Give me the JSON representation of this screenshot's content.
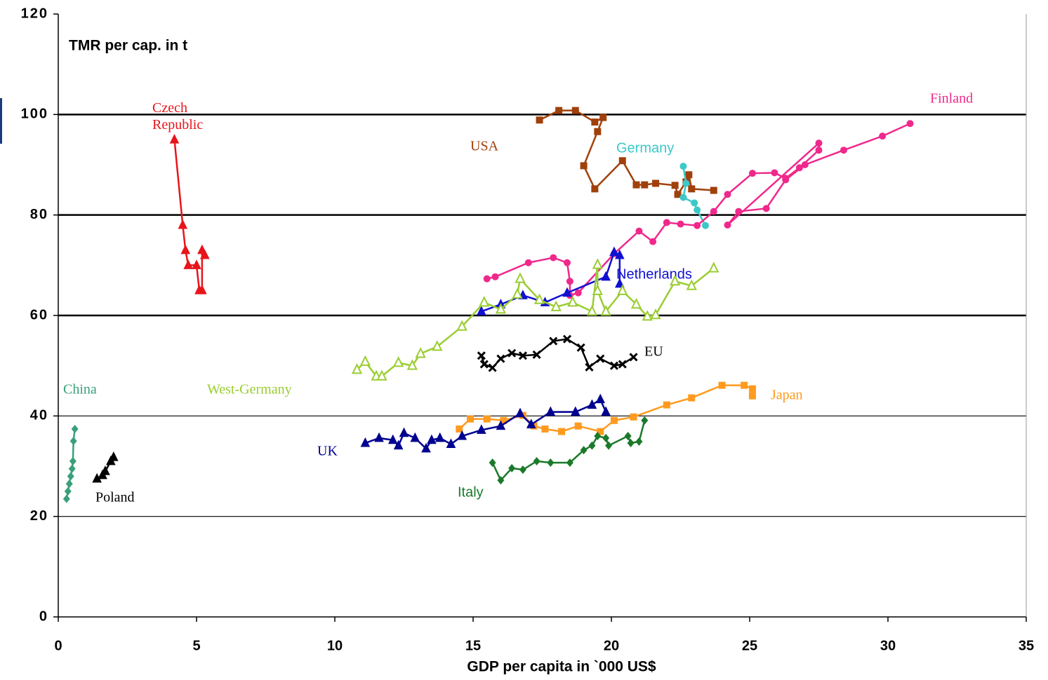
{
  "chart_data": {
    "type": "line",
    "ylabel": "TMR per cap.  in t",
    "xlabel": "GDP per capita in `000 US$",
    "xlim": [
      0,
      35
    ],
    "xticks": [
      0,
      5,
      10,
      15,
      20,
      25,
      30,
      35
    ],
    "ylim": [
      0,
      120
    ],
    "yticks": [
      0,
      20,
      40,
      60,
      80,
      100,
      120
    ],
    "grid": true,
    "series": [
      {
        "name": "Czech Republic",
        "color": "#e8141b",
        "marker": "triangle",
        "x": [
          4.2,
          4.5,
          4.6,
          4.7,
          5.0,
          5.1,
          5.2,
          5.2,
          5.3
        ],
        "values": [
          95,
          78,
          73,
          70,
          70,
          65,
          65,
          73,
          72
        ]
      },
      {
        "name": "China",
        "color": "#3aa07a",
        "marker": "diamond",
        "x": [
          0.3,
          0.35,
          0.4,
          0.45,
          0.5,
          0.53,
          0.55,
          0.6
        ],
        "values": [
          23.5,
          25,
          26.5,
          28,
          29.5,
          31,
          35,
          37.4
        ]
      },
      {
        "name": "Poland",
        "color": "#000000",
        "marker": "triangle",
        "x": [
          1.4,
          1.6,
          1.7,
          1.9,
          2.0
        ],
        "values": [
          27.5,
          28.2,
          29,
          31,
          31.8
        ]
      },
      {
        "name": "USA",
        "color": "#a0400a",
        "marker": "square",
        "x": [
          17.4,
          18.1,
          18.7,
          19.4,
          19.7,
          19.5,
          19.0,
          19.4,
          20.4,
          20.9,
          21.2,
          21.6,
          22.3,
          22.4,
          22.7,
          22.8,
          22.9,
          23.7
        ],
        "values": [
          98.9,
          100.8,
          100.8,
          98.5,
          99.4,
          96.6,
          89.8,
          85.2,
          90.8,
          86,
          86,
          86.3,
          85.9,
          84.1,
          86.6,
          88,
          85.2,
          84.9
        ]
      },
      {
        "name": "Germany",
        "color": "#3cc8c8",
        "marker": "circle",
        "x": [
          22.6,
          22.7,
          22.6,
          23.0,
          23.1,
          23.4
        ],
        "values": [
          89.7,
          86.3,
          83.5,
          82.4,
          81,
          77.9
        ]
      },
      {
        "name": "Finland",
        "color": "#f0288c",
        "marker": "circle",
        "x": [
          15.5,
          15.8,
          17.0,
          17.9,
          18.4,
          18.5,
          18.5,
          18.8,
          20.1,
          21.0,
          21.5,
          22.0,
          22.5,
          23.1,
          23.7,
          24.2,
          25.1,
          25.9,
          26.3,
          26.8,
          27.5,
          27.5,
          24.2,
          24.6,
          25.6,
          26.3,
          27.0,
          28.4,
          29.8,
          30.8
        ],
        "values": [
          67.3,
          67.7,
          70.5,
          71.5,
          70.5,
          66.8,
          64,
          64.5,
          72.3,
          76.8,
          74.7,
          78.5,
          78.2,
          77.9,
          80.7,
          84.1,
          88.3,
          88.4,
          87.3,
          89.4,
          92.9,
          94.3,
          78,
          80.7,
          81.3,
          87,
          90,
          92.9,
          95.7,
          98.2
        ]
      },
      {
        "name": "Netherlands",
        "color": "#1010d0",
        "marker": "triangle",
        "x": [
          15.3,
          16.0,
          16.8,
          17.6,
          18.4,
          19.8,
          20.1,
          20.3,
          20.3
        ],
        "values": [
          60.8,
          62.2,
          64,
          62.6,
          64.5,
          67.7,
          72.6,
          72,
          66.3
        ]
      },
      {
        "name": "West-Germany",
        "color": "#9acd32",
        "marker": "triangle-open",
        "x": [
          10.8,
          11.1,
          11.5,
          11.7,
          12.3,
          12.8,
          13.1,
          13.7,
          14.6,
          15.4,
          16.0,
          16.6,
          16.7,
          17.4,
          18.0,
          18.6,
          19.3,
          19.5,
          19.5,
          19.8,
          20.4,
          20.9,
          21.3,
          21.6,
          22.3,
          22.9,
          23.7
        ],
        "values": [
          49.2,
          50.8,
          47.9,
          47.9,
          50.6,
          50,
          52.4,
          53.8,
          57.8,
          62.6,
          61.2,
          64.2,
          67.3,
          63.1,
          61.7,
          62.6,
          60.8,
          70.1,
          64.9,
          60.8,
          64.9,
          62.2,
          59.8,
          60.1,
          66.8,
          65.9,
          69.4
        ]
      },
      {
        "name": "EU",
        "color": "#000000",
        "marker": "x",
        "x": [
          15.3,
          15.4,
          15.7,
          16.0,
          16.4,
          16.8,
          17.3,
          17.9,
          18.4,
          18.9,
          19.2,
          19.6,
          20.1,
          20.4,
          20.8
        ],
        "values": [
          52,
          50.3,
          49.6,
          51.4,
          52.5,
          52,
          52.2,
          54.9,
          55.3,
          53.6,
          49.7,
          51.4,
          50,
          50.3,
          51.7
        ]
      },
      {
        "name": "Japan",
        "color": "#ff9a1e",
        "marker": "square",
        "x": [
          14.5,
          14.9,
          15.5,
          16.1,
          16.8,
          17.2,
          17.6,
          18.2,
          18.8,
          19.6,
          20.1,
          20.8,
          22.0,
          22.9,
          24.0,
          24.8,
          25.1,
          25.1
        ],
        "values": [
          37.4,
          39.4,
          39.4,
          39.1,
          40.1,
          38,
          37.4,
          36.9,
          38,
          36.9,
          39.1,
          39.8,
          42.2,
          43.6,
          46.1,
          46.1,
          45.4,
          44
        ]
      },
      {
        "name": "UK",
        "color": "#000090",
        "marker": "triangle",
        "x": [
          11.1,
          11.6,
          12.1,
          12.3,
          12.5,
          12.9,
          13.3,
          13.5,
          13.8,
          14.2,
          14.6,
          15.3,
          16.0,
          16.7,
          17.1,
          17.8,
          18.7,
          19.3,
          19.6,
          19.8
        ],
        "values": [
          34.6,
          35.6,
          35.2,
          34.1,
          36.6,
          35.6,
          33.5,
          35.2,
          35.6,
          34.4,
          36,
          37.2,
          38,
          40.5,
          38.3,
          40.8,
          40.8,
          42.2,
          43.3,
          40.8
        ]
      },
      {
        "name": "Italy",
        "color": "#1a7a2a",
        "marker": "diamond",
        "x": [
          15.7,
          16.0,
          16.4,
          16.8,
          17.3,
          17.8,
          18.5,
          19.0,
          19.3,
          19.5,
          19.8,
          19.9,
          20.6,
          20.7,
          21.0,
          21.2
        ],
        "values": [
          30.7,
          27.2,
          29.6,
          29.3,
          31,
          30.7,
          30.7,
          33.2,
          34.1,
          36,
          35.6,
          34.1,
          36,
          34.6,
          34.9,
          39.1
        ]
      }
    ]
  }
}
